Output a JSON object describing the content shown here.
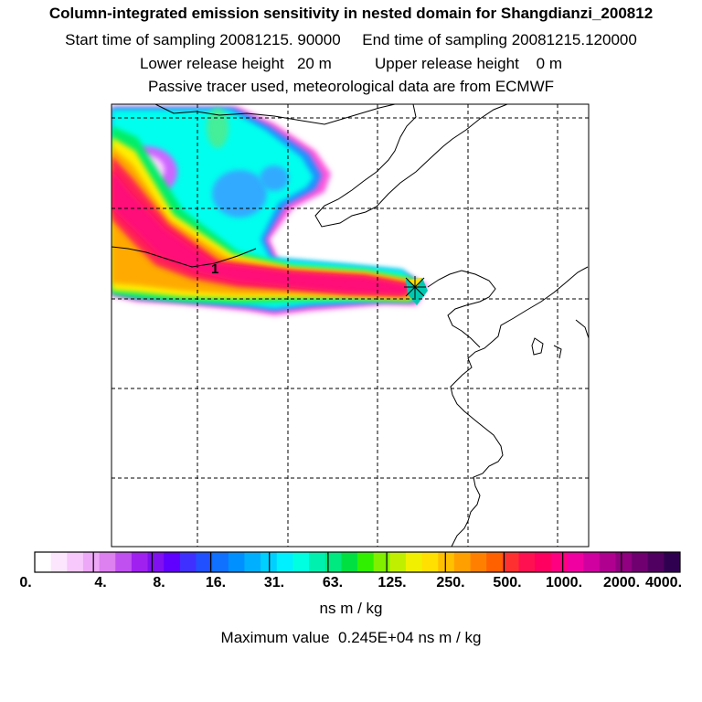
{
  "header": {
    "title": "Column-integrated emission sensitivity in nested domain for Shangdianzi_200812",
    "line2": "Start time of sampling 20081215. 90000     End time of sampling 20081215.120000",
    "line3": "Lower release height   20 m          Upper release height    0 m",
    "line4": "Passive tracer used, meteorological data are from ECMWF"
  },
  "map": {
    "receptor_label": "1",
    "receptor_marker": "star-marker",
    "plume_colors": {
      "outer": "#ff55dd",
      "mid_blue": "#1e90ff",
      "cyan": "#00ffee",
      "green": "#00ee66",
      "yellow": "#ffee00",
      "orange": "#ffaa00",
      "red": "#ff2255",
      "core": "#ff0a78",
      "purple_patch": "#cc66ff",
      "pale_pink": "#ffd6ff"
    }
  },
  "colorbar": {
    "tick_labels": [
      "0.",
      "4.",
      "8.",
      "16.",
      "31.",
      "63.",
      "125.",
      "250.",
      "500.",
      "1000.",
      "2000.",
      "4000."
    ],
    "colors": [
      "#ffffff",
      "#fce6fe",
      "#f7c8fc",
      "#eea8f8",
      "#dd80f0",
      "#c050f0",
      "#a020f0",
      "#8010f0",
      "#6000ff",
      "#4030ff",
      "#2050ff",
      "#1070ff",
      "#0090ff",
      "#00b0ff",
      "#00d0ff",
      "#00f0ff",
      "#00ffe0",
      "#00f0b0",
      "#00e880",
      "#00e040",
      "#30f000",
      "#80f000",
      "#c0f000",
      "#f0f000",
      "#ffe000",
      "#ffc000",
      "#ffa000",
      "#ff8000",
      "#ff6000",
      "#ff3030",
      "#ff1050",
      "#ff0060",
      "#ff0080",
      "#f000a0",
      "#d000a0",
      "#b00090",
      "#900080",
      "#700070",
      "#500060",
      "#300050"
    ]
  },
  "units": "ns m / kg",
  "max_value": "Maximum value  0.245E+04 ns m / kg"
}
